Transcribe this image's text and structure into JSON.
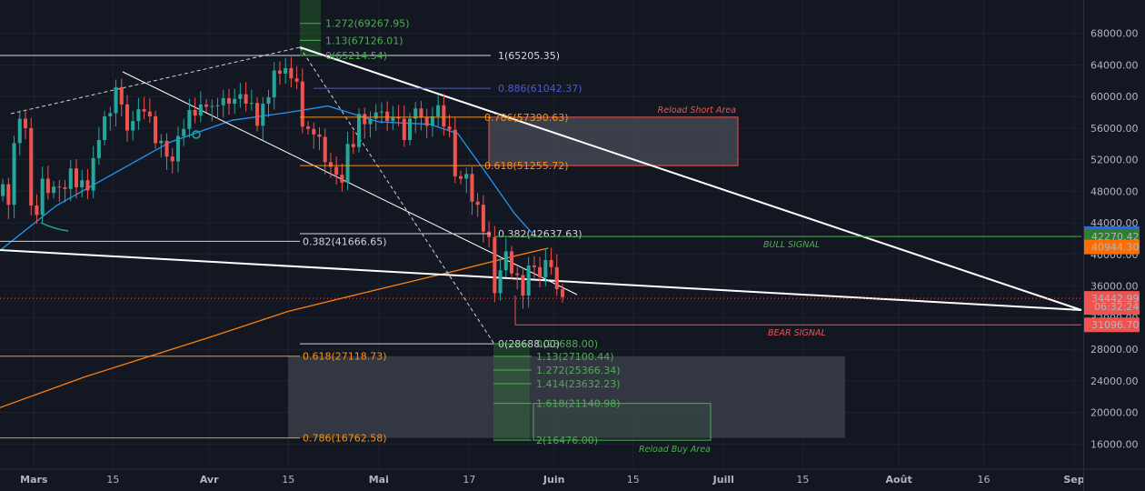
{
  "colors": {
    "background": "#131722",
    "up": "#26a69a",
    "down": "#ef5350",
    "ma_blue": "#2196f3",
    "ma_orange": "#ff7f0e",
    "white_line": "#ffffff",
    "fib_white": "#d1d4dc",
    "fib_orange": "#f7931a",
    "fib_blue": "#4a5ccf",
    "fib_green": "#4caf50",
    "zone_fill": "#4b4e5a",
    "green_zone_stroke": "#4caf50"
  },
  "chart_data": {
    "type": "candlestick",
    "y_axis": {
      "range": [
        13500,
        72000
      ],
      "ticks": [
        16000,
        20000,
        24000,
        28000,
        32000,
        36000,
        40000,
        44000,
        48000,
        52000,
        56000,
        60000,
        64000,
        68000
      ],
      "tick_labels": [
        "16000.00",
        "20000.00",
        "24000.00",
        "28000.00",
        "32000.00",
        "36000.00",
        "40000.00",
        "44000.00",
        "48000.00",
        "52000.00",
        "56000.00",
        "60000.00",
        "64000.00",
        "68000.00"
      ]
    },
    "x_axis": {
      "range": [
        "2021-02-23",
        "2021-09-01"
      ],
      "ticks": [
        {
          "date": "2021-03-01",
          "label": "Mars",
          "bold": true
        },
        {
          "date": "2021-03-15",
          "label": "15",
          "bold": false
        },
        {
          "date": "2021-04-01",
          "label": "Avr",
          "bold": true
        },
        {
          "date": "2021-04-15",
          "label": "15",
          "bold": false
        },
        {
          "date": "2021-05-01",
          "label": "Mai",
          "bold": true
        },
        {
          "date": "2021-05-17",
          "label": "17",
          "bold": false
        },
        {
          "date": "2021-06-01",
          "label": "Juin",
          "bold": true
        },
        {
          "date": "2021-06-15",
          "label": "15",
          "bold": false
        },
        {
          "date": "2021-07-01",
          "label": "Juill",
          "bold": true
        },
        {
          "date": "2021-07-15",
          "label": "15",
          "bold": false
        },
        {
          "date": "2021-08-01",
          "label": "Août",
          "bold": true
        },
        {
          "date": "2021-08-16",
          "label": "16",
          "bold": false
        },
        {
          "date": "2021-09-01",
          "label": "Sep",
          "bold": true
        }
      ]
    },
    "candles": {
      "start_date": "2021-02-23",
      "closes": [
        48900,
        46300,
        54100,
        57200,
        56000,
        46200,
        45000,
        49600,
        47800,
        48600,
        48500,
        48300,
        50900,
        48500,
        49400,
        48100,
        52200,
        54500,
        57500,
        57900,
        61200,
        59000,
        55700,
        56900,
        58400,
        58100,
        57500,
        54100,
        54400,
        52400,
        51800,
        55000,
        55900,
        58300,
        57600,
        59000,
        58700,
        58800,
        58900,
        59800,
        59100,
        59700,
        60300,
        59100,
        59200,
        56300,
        59100,
        59900,
        63300,
        62900,
        63600,
        62300,
        61900,
        56200,
        55900,
        55200,
        54900,
        51700,
        51100,
        50100,
        49100,
        54000,
        53600,
        57800,
        56500,
        57200,
        58000,
        58100,
        56900,
        57400,
        57200,
        54500,
        57200,
        58500,
        57400,
        56300,
        57500,
        58900,
        56200,
        55800,
        49900,
        49600,
        50200,
        46700,
        46300,
        42900,
        42200,
        35100,
        38000,
        40400,
        37600,
        37400,
        34800,
        38600,
        38400,
        37100,
        39300,
        38400,
        35600,
        34600
      ]
    },
    "moving_averages": [
      {
        "color": "blue",
        "points": [
          [
            "2021-02-23",
            40500
          ],
          [
            "2021-03-05",
            46200
          ],
          [
            "2021-03-15",
            50200
          ],
          [
            "2021-03-25",
            54200
          ],
          [
            "2021-04-05",
            57000
          ],
          [
            "2021-04-15",
            58000
          ],
          [
            "2021-04-22",
            58800
          ],
          [
            "2021-05-01",
            56800
          ],
          [
            "2021-05-10",
            56500
          ],
          [
            "2021-05-15",
            55300
          ],
          [
            "2021-05-20",
            50300
          ],
          [
            "2021-05-25",
            45200
          ],
          [
            "2021-05-28",
            42800
          ]
        ]
      },
      {
        "color": "orange",
        "points": [
          [
            "2021-02-23",
            20600
          ],
          [
            "2021-03-10",
            24500
          ],
          [
            "2021-04-01",
            29500
          ],
          [
            "2021-04-15",
            32800
          ],
          [
            "2021-05-01",
            35600
          ],
          [
            "2021-05-15",
            38000
          ],
          [
            "2021-05-25",
            39800
          ],
          [
            "2021-05-31",
            40800
          ]
        ]
      }
    ],
    "horizontal_levels": [
      {
        "label": "1(65205.35)",
        "value": 65205.35,
        "color": "white"
      },
      {
        "label": "0.886(61042.37)",
        "value": 61042.37,
        "color": "blue"
      },
      {
        "label": "0.786(57390.63)",
        "value": 57390.63,
        "color": "orange"
      },
      {
        "label": "0.618(51255.72)",
        "value": 51255.72,
        "color": "orange"
      },
      {
        "label": "0.382(42637.63)",
        "value": 42637.63,
        "color": "white"
      },
      {
        "label": "0.382(41666.65)",
        "value": 41666.65,
        "color": "white"
      },
      {
        "label": "0(28688.00)",
        "value": 28688.0,
        "color": "white"
      },
      {
        "label": "0.618(27118.73)",
        "value": 27118.73,
        "color": "orange"
      },
      {
        "label": "0.786(16762.58)",
        "value": 16762.58,
        "color": "orange"
      }
    ],
    "fib_extensions_top": [
      {
        "label": "1.272(69267.95)",
        "value": 69267.95
      },
      {
        "label": "1.13(67126.01)",
        "value": 67126.01
      },
      {
        "label": "0(65214.54)",
        "value": 65214.54
      }
    ],
    "fib_extensions_bottom": [
      {
        "label": "0(28688.00)",
        "value": 28688.0
      },
      {
        "label": "1.13(27100.44)",
        "value": 27100.44
      },
      {
        "label": "1.272(25366.34)",
        "value": 25366.34
      },
      {
        "label": "1.414(23632.23)",
        "value": 23632.23
      },
      {
        "label": "1.618(21140.98)",
        "value": 21140.98
      },
      {
        "label": "2(16476.00)",
        "value": 16476.0
      }
    ],
    "signals": [
      {
        "label": "BULL SIGNAL",
        "value": 42270.42
      },
      {
        "label": "BEAR SIGNAL",
        "value": 31096.7
      }
    ],
    "zones": [
      {
        "label": "Reload Short Area",
        "from": "2021-05-18",
        "to": "2021-06-30",
        "top": 57390.63,
        "bottom": 51255.72
      },
      {
        "label": "Reload Buy Area",
        "from": "2021-05-20",
        "to": "2021-06-30",
        "top": 21140.98,
        "bottom": 16476.0
      }
    ],
    "price_labels": [
      {
        "text": "42644.26",
        "value": 42644.26,
        "color": "#2962ff"
      },
      {
        "text": "42270.42",
        "value": 42270.42,
        "color": "#2e7d32"
      },
      {
        "text": "40944.30",
        "value": 40944.3,
        "color": "#ff6d00"
      },
      {
        "text": "34442.99",
        "value": 34442.99,
        "color": "#ef5350"
      },
      {
        "text": "06:32:24",
        "value": 33400,
        "color": "#ef5350"
      },
      {
        "text": "31096.70",
        "value": 31096.7,
        "color": "#ef5350"
      }
    ]
  },
  "labels": {
    "reload_short": "Reload Short Area",
    "reload_buy": "Reload Buy Area",
    "bull_signal": "BULL SIGNAL",
    "bear_signal": "BEAR SIGNAL"
  }
}
